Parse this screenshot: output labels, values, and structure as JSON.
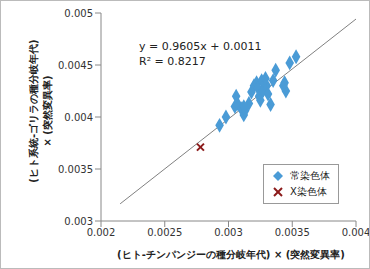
{
  "chart_data": {
    "type": "scatter",
    "x_label": "(ヒト-チンパンジーの種分岐年代) × (突然変異率)",
    "y_label": [
      "(ヒト系統-ゴリラの種分岐年代)",
      "× (突然変異率)"
    ],
    "xlim": [
      0.002,
      0.004
    ],
    "xticks": [
      0.002,
      0.0025,
      0.003,
      0.0035,
      0.004
    ],
    "ylim": [
      0.003,
      0.005
    ],
    "yticks": [
      0.003,
      0.0035,
      0.004,
      0.0045,
      0.005
    ],
    "grid": false,
    "legend": "bottom-right",
    "series": [
      {
        "name": "常染色体",
        "color": "#4a9bd6",
        "marker": "diamond",
        "x": [
          0.00293,
          0.00298,
          0.00305,
          0.00307,
          0.00306,
          0.0031,
          0.00312,
          0.00313,
          0.00316,
          0.00318,
          0.0032,
          0.00322,
          0.00323,
          0.00324,
          0.00325,
          0.00326,
          0.00327,
          0.00328,
          0.0033,
          0.00331,
          0.00333,
          0.00335,
          0.00337,
          0.00343,
          0.00345,
          0.00344,
          0.00348,
          0.00353,
          0.00312,
          0.00329
        ],
        "values": [
          0.00392,
          0.004,
          0.0041,
          0.00413,
          0.0042,
          0.00408,
          0.00402,
          0.00406,
          0.00413,
          0.00424,
          0.0043,
          0.00433,
          0.00428,
          0.0042,
          0.00416,
          0.00435,
          0.00425,
          0.00432,
          0.0043,
          0.00422,
          0.00412,
          0.00435,
          0.00445,
          0.0043,
          0.00425,
          0.00433,
          0.00452,
          0.00458,
          0.0041,
          0.00437
        ]
      },
      {
        "name": "X染色体",
        "color": "#8b1a1a",
        "marker": "x",
        "x": [
          0.00278
        ],
        "values": [
          0.00371
        ]
      }
    ],
    "trendline": {
      "slope": 0.9605,
      "intercept": 0.0011,
      "x": [
        0.00215,
        0.004
      ],
      "color": "#808080",
      "annotations": [
        "y = 0.9605x + 0.0011",
        "R² = 0.8217"
      ]
    }
  }
}
